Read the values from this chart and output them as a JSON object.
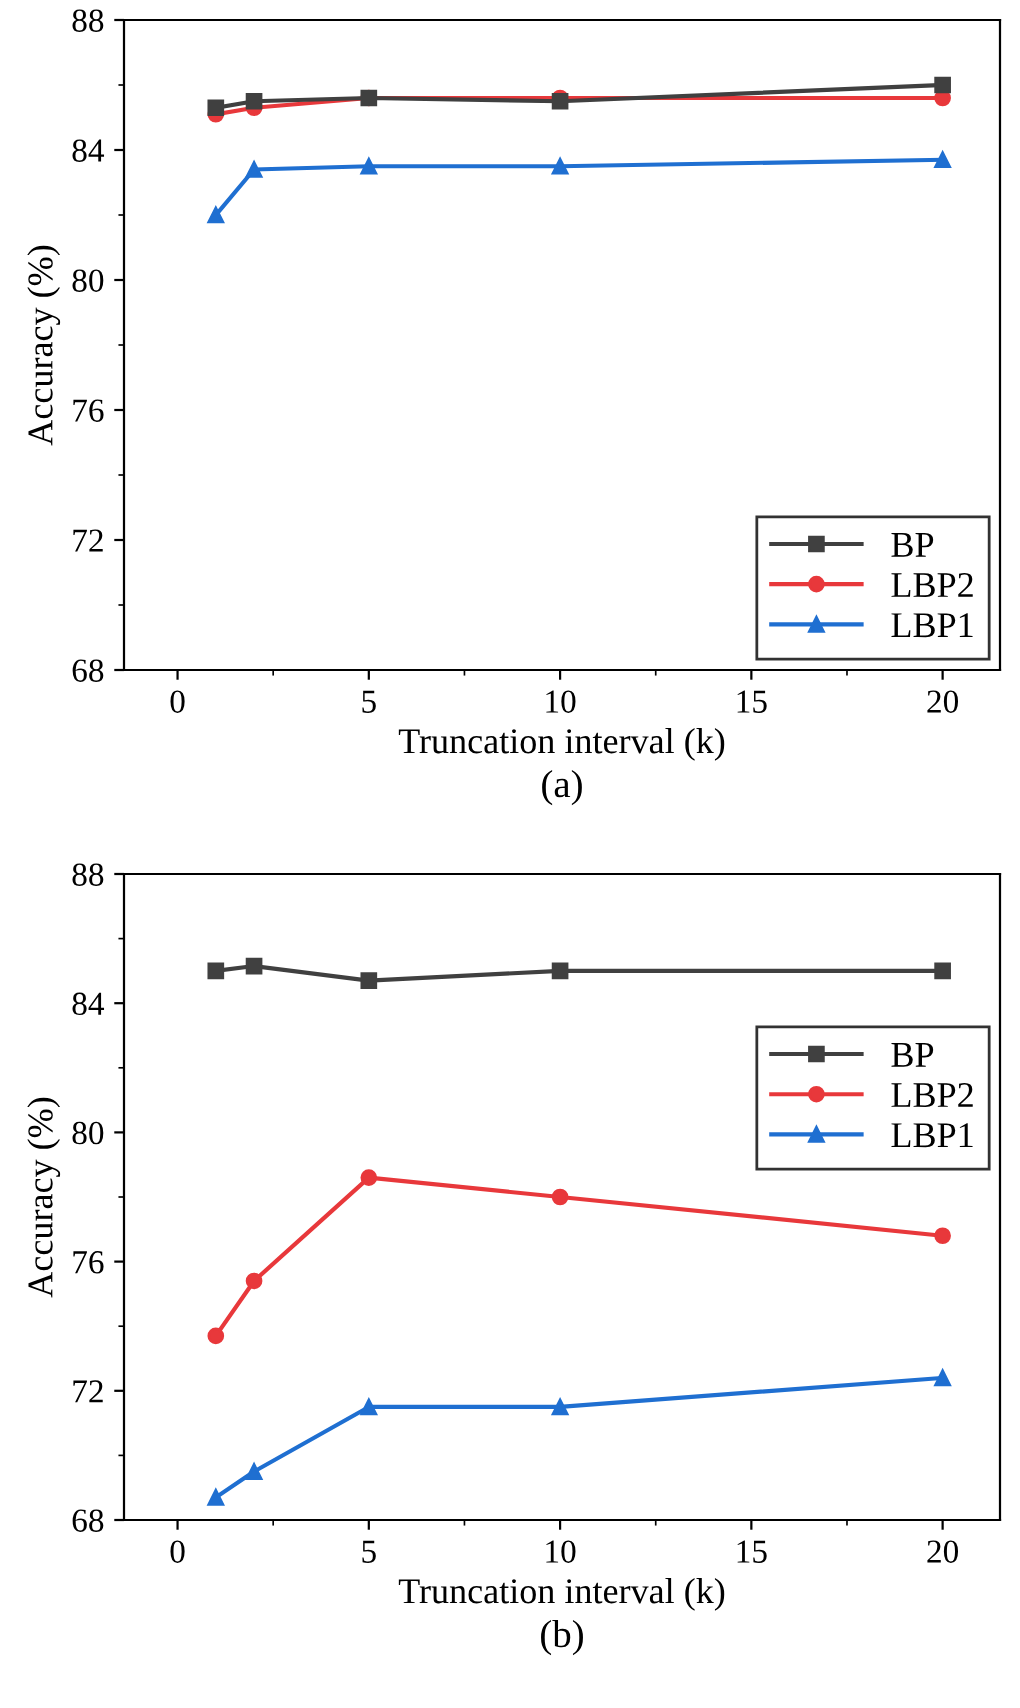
{
  "chart_data": [
    {
      "type": "line",
      "xlabel": "Truncation interval (k)",
      "ylabel": "Accuracy (%)",
      "annotations": [
        "(a)"
      ],
      "x": [
        1,
        2,
        5,
        10,
        20
      ],
      "xlim": [
        -1.4,
        21.5
      ],
      "xticks": [
        0,
        5,
        10,
        15,
        20
      ],
      "ylim": [
        68,
        88
      ],
      "yticks": [
        68,
        72,
        76,
        80,
        84,
        88
      ],
      "legend": "bottom right",
      "marker": "auto",
      "line_style": "solid",
      "grid": false,
      "series": [
        {
          "name": "BP",
          "color": "#404040",
          "marker": "square",
          "values": [
            85.3,
            85.5,
            85.6,
            85.5,
            86.0
          ]
        },
        {
          "name": "LBP2",
          "color": "#e8383b",
          "marker": "circle",
          "values": [
            85.1,
            85.3,
            85.6,
            85.6,
            85.6
          ]
        },
        {
          "name": "LBP1",
          "color": "#1f6fd1",
          "marker": "triangle",
          "values": [
            82.0,
            83.4,
            83.5,
            83.5,
            83.7
          ]
        }
      ]
    },
    {
      "type": "line",
      "xlabel": "Truncation interval (k)",
      "ylabel": "Accuracy (%)",
      "annotations": [
        "(b)"
      ],
      "x": [
        1,
        2,
        5,
        10,
        20
      ],
      "xlim": [
        -1.4,
        21.5
      ],
      "xticks": [
        0,
        5,
        10,
        15,
        20
      ],
      "ylim": [
        68,
        88
      ],
      "yticks": [
        68,
        72,
        76,
        80,
        84,
        88
      ],
      "legend": "right",
      "marker": "auto",
      "line_style": "solid",
      "grid": false,
      "series": [
        {
          "name": "BP",
          "color": "#404040",
          "marker": "square",
          "values": [
            85.0,
            85.15,
            84.7,
            85.0,
            85.0
          ]
        },
        {
          "name": "LBP2",
          "color": "#e8383b",
          "marker": "circle",
          "values": [
            73.7,
            75.4,
            78.6,
            78.0,
            76.8
          ]
        },
        {
          "name": "LBP1",
          "color": "#1f6fd1",
          "marker": "triangle",
          "values": [
            68.7,
            69.5,
            71.5,
            71.5,
            72.4
          ]
        }
      ]
    }
  ]
}
